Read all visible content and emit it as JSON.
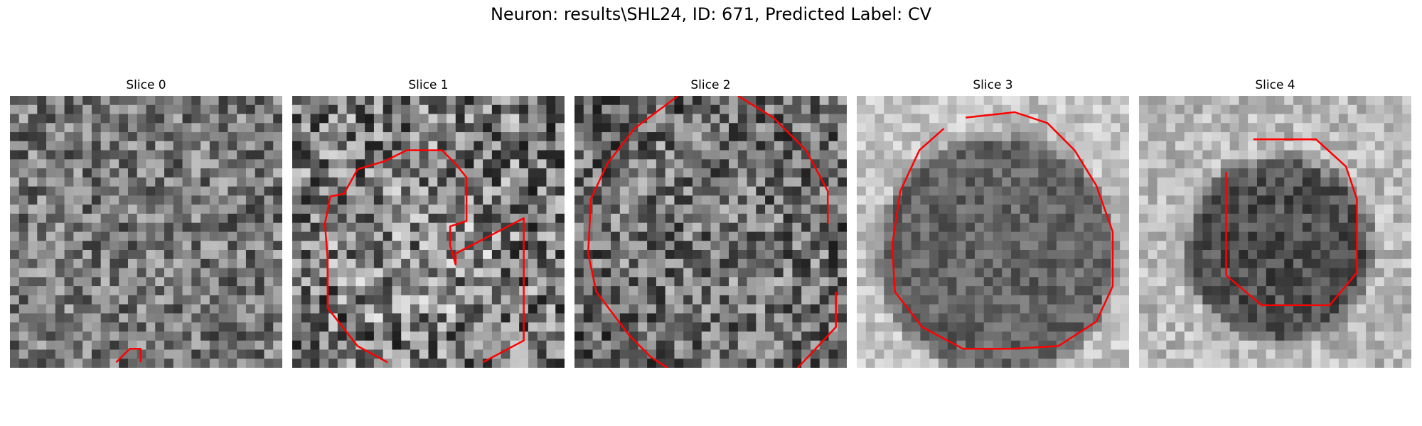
{
  "figure": {
    "suptitle": "Neuron: results\\SHL24, ID: 671, Predicted Label: CV"
  },
  "colors": {
    "contour": "#ff0000",
    "background": "#ffffff"
  },
  "slices": [
    {
      "title": "Slice 0"
    },
    {
      "title": "Slice 1"
    },
    {
      "title": "Slice 2"
    },
    {
      "title": "Slice 3"
    },
    {
      "title": "Slice 4"
    }
  ]
}
